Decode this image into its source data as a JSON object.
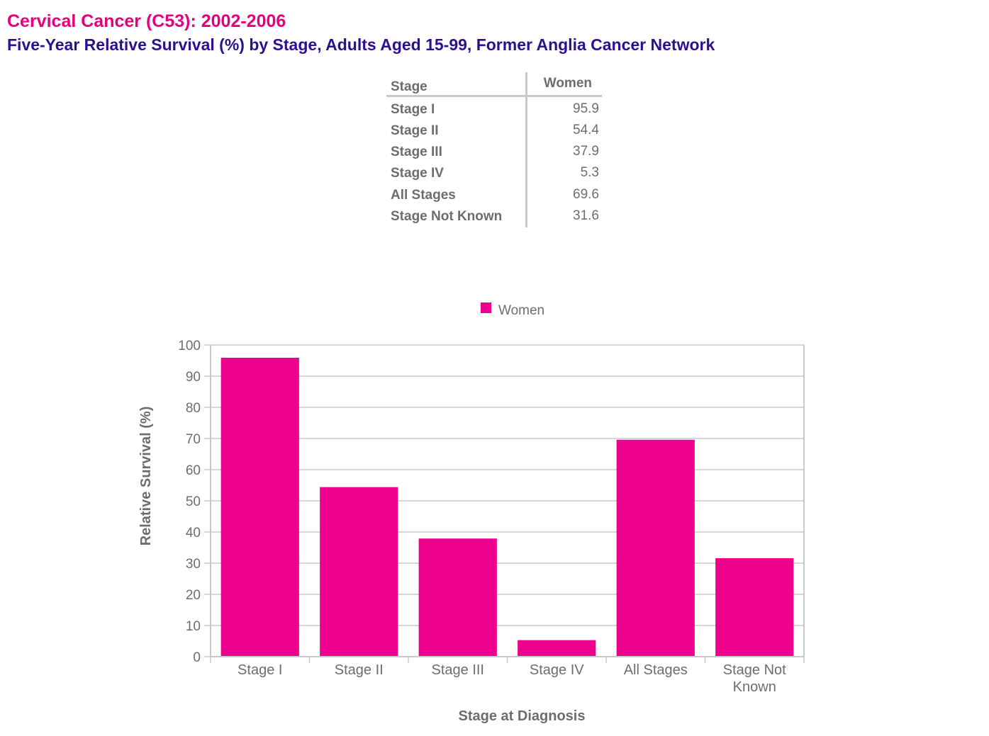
{
  "title": "Cervical Cancer (C53): 2002-2006",
  "subtitle": "Five-Year Relative Survival (%) by Stage, Adults Aged 15-99, Former Anglia Cancer Network",
  "table": {
    "headers": [
      "Stage",
      "Women"
    ],
    "rows": [
      {
        "stage": "Stage I",
        "women": "95.9"
      },
      {
        "stage": "Stage II",
        "women": "54.4"
      },
      {
        "stage": "Stage III",
        "women": "37.9"
      },
      {
        "stage": "Stage IV",
        "women": "5.3"
      },
      {
        "stage": "All Stages",
        "women": "69.6"
      },
      {
        "stage": "Stage Not Known",
        "women": "31.6"
      }
    ]
  },
  "chart_data": {
    "type": "bar",
    "categories": [
      "Stage I",
      "Stage II",
      "Stage III",
      "Stage IV",
      "All Stages",
      "Stage Not Known"
    ],
    "category_tick_labels": [
      [
        "Stage I"
      ],
      [
        "Stage II"
      ],
      [
        "Stage III"
      ],
      [
        "Stage IV"
      ],
      [
        "All Stages"
      ],
      [
        "Stage Not",
        "Known"
      ]
    ],
    "series": [
      {
        "name": "Women",
        "values": [
          95.9,
          54.4,
          37.9,
          5.3,
          69.6,
          31.6
        ],
        "color": "#ec008c"
      }
    ],
    "xlabel": "Stage at Diagnosis",
    "ylabel": "Relative Survival (%)",
    "ylim": [
      0,
      100
    ],
    "yticks": [
      0,
      10,
      20,
      30,
      40,
      50,
      60,
      70,
      80,
      90,
      100
    ],
    "grid": true,
    "legend_position": "top-center"
  },
  "colors": {
    "title": "#e6007e",
    "subtitle": "#2e0f8f",
    "bar": "#ec008c",
    "grid": "#c8c8c8",
    "text": "#6d6d6d"
  }
}
